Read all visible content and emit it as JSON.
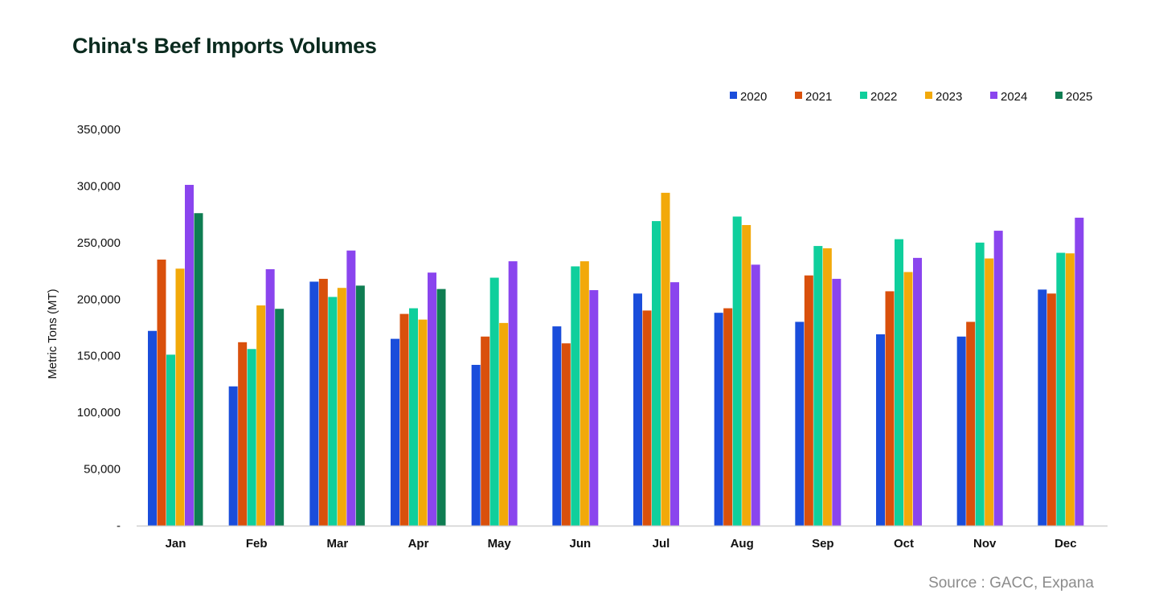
{
  "chart_data": {
    "type": "bar",
    "title": "China's Beef Imports Volumes",
    "ylabel": "Metric Tons (MT)",
    "xlabel": "",
    "source": "Source : GACC, Expana",
    "categories": [
      "Jan",
      "Feb",
      "Mar",
      "Apr",
      "May",
      "Jun",
      "Jul",
      "Aug",
      "Sep",
      "Oct",
      "Nov",
      "Dec"
    ],
    "ylim": [
      0,
      350000
    ],
    "yticks": [
      0,
      50000,
      100000,
      150000,
      200000,
      250000,
      300000,
      350000
    ],
    "ytick_labels": [
      "-",
      "50,000",
      "100,000",
      "150,000",
      "200,000",
      "250,000",
      "300,000",
      "350,000"
    ],
    "legend_position": "top-right",
    "grid": false,
    "series": [
      {
        "name": "2020",
        "color": "#1a4ddb",
        "values": [
          172000,
          123000,
          215500,
          165000,
          142000,
          176000,
          205000,
          188000,
          180000,
          169000,
          167000,
          208500
        ]
      },
      {
        "name": "2021",
        "color": "#d9500c",
        "values": [
          235000,
          162000,
          218000,
          187000,
          167000,
          161000,
          190000,
          192000,
          221000,
          207000,
          180000,
          205000
        ]
      },
      {
        "name": "2022",
        "color": "#0fcf9c",
        "values": [
          151000,
          156000,
          202000,
          192000,
          219000,
          229000,
          269000,
          273000,
          247000,
          253000,
          250000,
          241000
        ]
      },
      {
        "name": "2023",
        "color": "#f2a90a",
        "values": [
          227000,
          194500,
          210000,
          182000,
          179000,
          233500,
          294000,
          265500,
          245000,
          224000,
          236000,
          240500
        ]
      },
      {
        "name": "2024",
        "color": "#8a45ee",
        "values": [
          301000,
          226500,
          243000,
          223500,
          233500,
          208000,
          215000,
          230500,
          218000,
          236500,
          260500,
          272000
        ]
      },
      {
        "name": "2025",
        "color": "#0f7d52",
        "values": [
          276000,
          191500,
          212000,
          209000,
          null,
          null,
          null,
          null,
          null,
          null,
          null,
          null
        ]
      }
    ]
  }
}
